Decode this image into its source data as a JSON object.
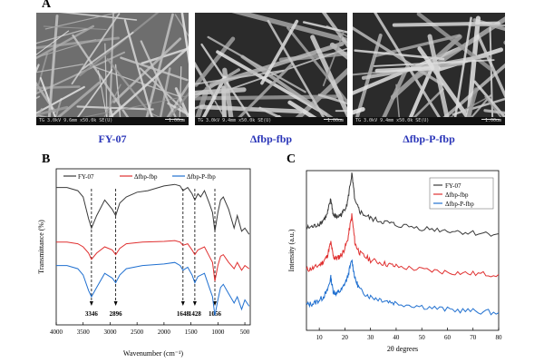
{
  "panels": {
    "A": {
      "letter": "A",
      "images": [
        {
          "caption": "FY-07",
          "footer_info": "TG 3.0kV 9.6mm x50.0k SE(U)",
          "scale_label": "1.00um"
        },
        {
          "caption": "Δfbp-fbp",
          "footer_info": "TG 3.0kV 9.4mm x50.0k SE(U)",
          "scale_label": "1.00um"
        },
        {
          "caption": "Δfbp-P-fbp",
          "footer_info": "TG 3.0kV 9.4mm x50.0k SE(U)",
          "scale_label": "1.00um"
        }
      ]
    },
    "B": {
      "letter": "B"
    },
    "C": {
      "letter": "C"
    }
  },
  "colors": {
    "caption": "#2a35b8",
    "black_series": "#3a3a3a",
    "red_series": "#e03030",
    "blue_series": "#2070d0"
  },
  "chart_data": [
    {
      "type": "line",
      "panel": "B",
      "xlabel": "Wavenumber (cm⁻¹)",
      "ylabel": "Transmittance (%)",
      "xlim": [
        4000,
        400
      ],
      "x_ticks": [
        4000,
        3500,
        3000,
        2500,
        2000,
        1500,
        1000,
        500
      ],
      "series": [
        {
          "name": "FY-07",
          "color": "#3a3a3a",
          "points": [
            [
              4000,
              0.88
            ],
            [
              3800,
              0.88
            ],
            [
              3600,
              0.86
            ],
            [
              3500,
              0.82
            ],
            [
              3400,
              0.68
            ],
            [
              3346,
              0.62
            ],
            [
              3250,
              0.7
            ],
            [
              3100,
              0.8
            ],
            [
              2960,
              0.74
            ],
            [
              2896,
              0.7
            ],
            [
              2820,
              0.78
            ],
            [
              2700,
              0.82
            ],
            [
              2500,
              0.85
            ],
            [
              2300,
              0.86
            ],
            [
              2000,
              0.89
            ],
            [
              1800,
              0.9
            ],
            [
              1700,
              0.89
            ],
            [
              1648,
              0.86
            ],
            [
              1560,
              0.88
            ],
            [
              1480,
              0.84
            ],
            [
              1428,
              0.8
            ],
            [
              1370,
              0.84
            ],
            [
              1320,
              0.82
            ],
            [
              1250,
              0.86
            ],
            [
              1160,
              0.78
            ],
            [
              1100,
              0.72
            ],
            [
              1056,
              0.6
            ],
            [
              1000,
              0.72
            ],
            [
              950,
              0.8
            ],
            [
              900,
              0.82
            ],
            [
              800,
              0.74
            ],
            [
              700,
              0.62
            ],
            [
              640,
              0.7
            ],
            [
              560,
              0.6
            ],
            [
              500,
              0.62
            ],
            [
              420,
              0.58
            ]
          ]
        },
        {
          "name": "Δfbp-fbp",
          "color": "#e03030",
          "points": [
            [
              4000,
              0.53
            ],
            [
              3800,
              0.53
            ],
            [
              3600,
              0.52
            ],
            [
              3500,
              0.5
            ],
            [
              3400,
              0.46
            ],
            [
              3346,
              0.42
            ],
            [
              3250,
              0.46
            ],
            [
              3100,
              0.5
            ],
            [
              2960,
              0.48
            ],
            [
              2896,
              0.45
            ],
            [
              2820,
              0.49
            ],
            [
              2700,
              0.52
            ],
            [
              2400,
              0.53
            ],
            [
              2000,
              0.535
            ],
            [
              1800,
              0.54
            ],
            [
              1700,
              0.53
            ],
            [
              1648,
              0.51
            ],
            [
              1560,
              0.52
            ],
            [
              1480,
              0.48
            ],
            [
              1428,
              0.45
            ],
            [
              1370,
              0.48
            ],
            [
              1250,
              0.5
            ],
            [
              1160,
              0.44
            ],
            [
              1100,
              0.4
            ],
            [
              1056,
              0.28
            ],
            [
              1000,
              0.38
            ],
            [
              950,
              0.44
            ],
            [
              900,
              0.45
            ],
            [
              800,
              0.4
            ],
            [
              700,
              0.36
            ],
            [
              640,
              0.4
            ],
            [
              560,
              0.35
            ],
            [
              500,
              0.38
            ],
            [
              420,
              0.36
            ]
          ]
        },
        {
          "name": "Δfbp-P-fbp",
          "color": "#2070d0",
          "points": [
            [
              4000,
              0.38
            ],
            [
              3800,
              0.38
            ],
            [
              3600,
              0.36
            ],
            [
              3500,
              0.32
            ],
            [
              3400,
              0.22
            ],
            [
              3346,
              0.18
            ],
            [
              3250,
              0.24
            ],
            [
              3100,
              0.33
            ],
            [
              2960,
              0.3
            ],
            [
              2896,
              0.27
            ],
            [
              2820,
              0.32
            ],
            [
              2700,
              0.36
            ],
            [
              2400,
              0.38
            ],
            [
              2000,
              0.39
            ],
            [
              1800,
              0.4
            ],
            [
              1700,
              0.38
            ],
            [
              1648,
              0.35
            ],
            [
              1560,
              0.37
            ],
            [
              1480,
              0.32
            ],
            [
              1428,
              0.27
            ],
            [
              1370,
              0.31
            ],
            [
              1250,
              0.33
            ],
            [
              1160,
              0.24
            ],
            [
              1100,
              0.18
            ],
            [
              1056,
              0.06
            ],
            [
              1000,
              0.16
            ],
            [
              950,
              0.24
            ],
            [
              900,
              0.26
            ],
            [
              800,
              0.2
            ],
            [
              700,
              0.14
            ],
            [
              640,
              0.18
            ],
            [
              560,
              0.1
            ],
            [
              500,
              0.16
            ],
            [
              420,
              0.12
            ]
          ]
        }
      ],
      "annotations": [
        {
          "x": 3346,
          "label": "3346"
        },
        {
          "x": 2896,
          "label": "2896"
        },
        {
          "x": 1648,
          "label": "1648"
        },
        {
          "x": 1428,
          "label": "1428"
        },
        {
          "x": 1056,
          "label": "1056"
        }
      ],
      "legend": "top",
      "grid": false
    },
    {
      "type": "line",
      "panel": "C",
      "xlabel": "2θ degrees",
      "ylabel": "Intensity (a.u.)",
      "xlim": [
        5,
        80
      ],
      "x_ticks": [
        10,
        20,
        30,
        40,
        50,
        60,
        70,
        80
      ],
      "series": [
        {
          "name": "FY-07",
          "color": "#3a3a3a",
          "points": [
            [
              5,
              0.64
            ],
            [
              8,
              0.65
            ],
            [
              11,
              0.68
            ],
            [
              13,
              0.72
            ],
            [
              14.5,
              0.82
            ],
            [
              15.5,
              0.72
            ],
            [
              17,
              0.71
            ],
            [
              19,
              0.73
            ],
            [
              21,
              0.8
            ],
            [
              22.7,
              0.98
            ],
            [
              24,
              0.8
            ],
            [
              26,
              0.74
            ],
            [
              30,
              0.7
            ],
            [
              35,
              0.68
            ],
            [
              40,
              0.66
            ],
            [
              50,
              0.64
            ],
            [
              60,
              0.625
            ],
            [
              70,
              0.61
            ],
            [
              80,
              0.605
            ]
          ]
        },
        {
          "name": "Δfbp-fbp",
          "color": "#e03030",
          "points": [
            [
              5,
              0.38
            ],
            [
              8,
              0.39
            ],
            [
              11,
              0.42
            ],
            [
              13,
              0.46
            ],
            [
              14.5,
              0.55
            ],
            [
              15.5,
              0.46
            ],
            [
              17,
              0.45
            ],
            [
              19,
              0.48
            ],
            [
              21,
              0.56
            ],
            [
              22.7,
              0.72
            ],
            [
              24,
              0.54
            ],
            [
              26,
              0.48
            ],
            [
              30,
              0.44
            ],
            [
              35,
              0.42
            ],
            [
              40,
              0.4
            ],
            [
              50,
              0.38
            ],
            [
              60,
              0.365
            ],
            [
              70,
              0.355
            ],
            [
              80,
              0.35
            ]
          ]
        },
        {
          "name": "Δfbp-P-fbp",
          "color": "#2070d0",
          "points": [
            [
              5,
              0.16
            ],
            [
              8,
              0.17
            ],
            [
              11,
              0.2
            ],
            [
              13,
              0.24
            ],
            [
              14.5,
              0.33
            ],
            [
              15.5,
              0.24
            ],
            [
              17,
              0.23
            ],
            [
              19,
              0.26
            ],
            [
              21,
              0.33
            ],
            [
              22.7,
              0.44
            ],
            [
              24,
              0.32
            ],
            [
              26,
              0.25
            ],
            [
              30,
              0.21
            ],
            [
              35,
              0.19
            ],
            [
              40,
              0.17
            ],
            [
              50,
              0.15
            ],
            [
              60,
              0.13
            ],
            [
              70,
              0.12
            ],
            [
              80,
              0.11
            ]
          ]
        }
      ],
      "legend": "top-right",
      "grid": false
    }
  ]
}
